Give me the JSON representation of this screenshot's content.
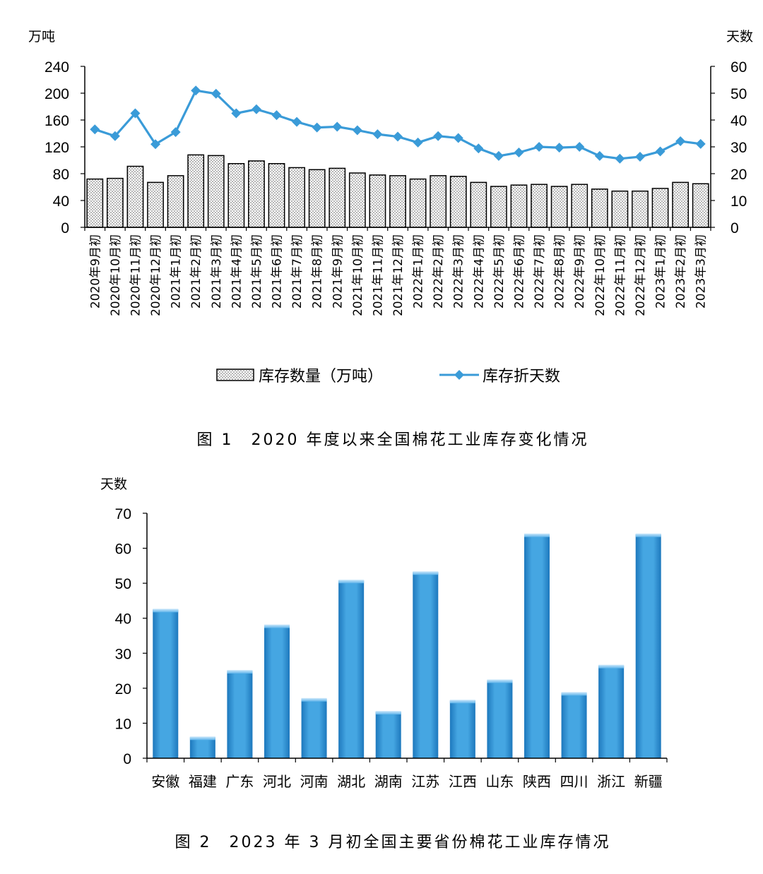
{
  "chart_data": [
    {
      "type": "bar+line",
      "categories": [
        "2020年9月初",
        "2020年10月初",
        "2020年11月初",
        "2020年12月初",
        "2021年1月初",
        "2021年2月初",
        "2021年3月初",
        "2021年4月初",
        "2021年5月初",
        "2021年6月初",
        "2021年7月初",
        "2021年8月初",
        "2021年9月初",
        "2021年10月初",
        "2021年11月初",
        "2021年12月初",
        "2022年1月初",
        "2022年2月初",
        "2022年3月初",
        "2022年4月初",
        "2022年5月初",
        "2022年6月初",
        "2022年7月初",
        "2022年8月初",
        "2022年9月初",
        "2022年10月初",
        "2022年11月初",
        "2022年12月初",
        "2023年1月初",
        "2023年2月初",
        "2023年3月初"
      ],
      "series": [
        {
          "name": "库存数量（万吨）",
          "axis": "left",
          "type": "bar",
          "values": [
            72,
            73,
            91,
            67,
            77,
            108,
            107,
            95,
            99,
            95,
            89,
            86,
            88,
            81,
            78,
            77,
            72,
            77,
            76,
            67,
            61,
            63,
            64,
            61,
            64,
            57,
            54,
            54,
            58,
            67,
            65
          ]
        },
        {
          "name": "库存折天数",
          "axis": "right",
          "type": "line",
          "values": [
            36.5,
            34,
            42.5,
            31,
            35.5,
            51,
            49.8,
            42.5,
            44,
            41.8,
            39.3,
            37.2,
            37.5,
            36.2,
            34.7,
            33.8,
            31.6,
            34,
            33.3,
            29.4,
            26.6,
            27.9,
            30,
            29.7,
            30,
            26.6,
            25.6,
            26.3,
            28.3,
            32.1,
            31.1
          ]
        }
      ],
      "y_left": {
        "unit": "万吨",
        "range": [
          0,
          240
        ],
        "ticks": [
          "0",
          "40",
          "80",
          "120",
          "160",
          "200",
          "240"
        ]
      },
      "y_right": {
        "unit": "天数",
        "range": [
          0,
          60
        ],
        "ticks": [
          "0",
          "10",
          "20",
          "30",
          "40",
          "50",
          "60"
        ]
      },
      "legend": {
        "position": "bottom",
        "bar_label": "库存数量（万吨）",
        "line_label": "库存折天数"
      },
      "grid": false,
      "bar_pattern": "dotted",
      "line_color": "#3A9BD8"
    },
    {
      "type": "bar",
      "categories": [
        "安徽",
        "福建",
        "广东",
        "河北",
        "河南",
        "湖北",
        "湖南",
        "江苏",
        "江西",
        "山东",
        "陕西",
        "四川",
        "浙江",
        "新疆"
      ],
      "values": [
        42.5,
        6,
        25,
        38,
        17,
        50.8,
        13.3,
        53.2,
        16.5,
        22.3,
        64,
        18.7,
        26.5,
        64
      ],
      "y": {
        "unit": "天数",
        "range": [
          0,
          70
        ],
        "ticks": [
          "0",
          "10",
          "20",
          "30",
          "40",
          "50",
          "60",
          "70"
        ]
      },
      "grid": false,
      "bar_color": "#3A9BD8"
    }
  ],
  "captions": {
    "figure1": "图 1　2020 年度以来全国棉花工业库存变化情况",
    "figure2": "图 2　2023 年 3 月初全国主要省份棉花工业库存情况"
  }
}
